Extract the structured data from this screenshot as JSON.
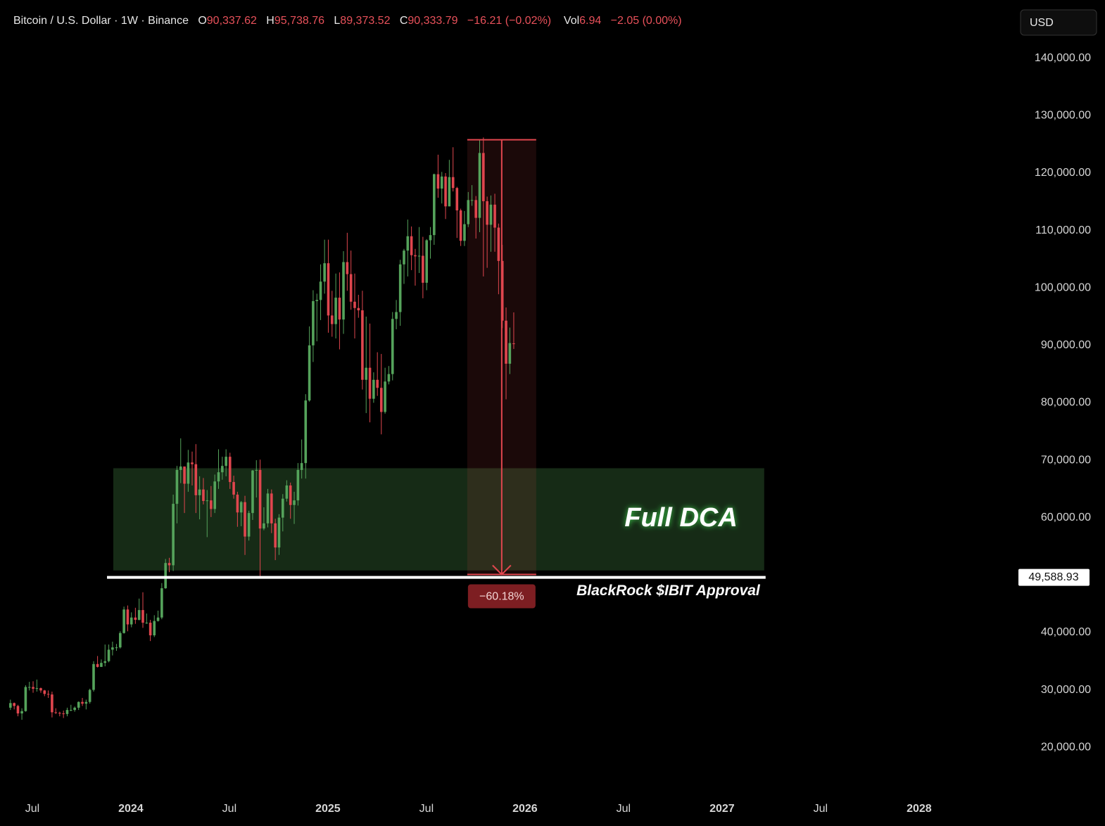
{
  "header": {
    "symbol": "Bitcoin / U.S. Dollar · 1W · Binance",
    "fields": [
      {
        "key": "O",
        "text": "90,337.62"
      },
      {
        "key": "H",
        "text": "95,738.76"
      },
      {
        "key": "L",
        "text": "89,373.52"
      },
      {
        "key": "C",
        "text": "90,333.79"
      }
    ],
    "change": "−16.21 (−0.02%)",
    "vol_key": "Vol",
    "vol": "6.94",
    "vol_change": "−2.05 (0.00%)",
    "currency": "USD"
  },
  "chart_data": {
    "type": "candlestick",
    "up_color": "#55a35b",
    "down_color": "#e0464e",
    "xlim": [
      2023.336,
      2028.479
    ],
    "ylim": [
      12300,
      143400
    ],
    "xticks": [
      {
        "value": 2023.5,
        "label": "Jul"
      },
      2024,
      {
        "value": 2024.5,
        "label": "Jul"
      },
      2025,
      {
        "value": 2025.5,
        "label": "Jul"
      },
      2026,
      {
        "value": 2026.5,
        "label": "Jul"
      },
      2027,
      {
        "value": 2027.5,
        "label": "Jul"
      },
      2028
    ],
    "yticks": [
      {
        "value": 20000,
        "label": "20,000.00"
      },
      {
        "value": 30000,
        "label": "30,000.00"
      },
      {
        "value": 40000,
        "label": "40,000.00"
      },
      {
        "value": 60000,
        "label": "60,000.00"
      },
      {
        "value": 70000,
        "label": "70,000.00"
      },
      {
        "value": 80000,
        "label": "80,000.00"
      },
      {
        "value": 90000,
        "label": "90,000.00"
      },
      {
        "value": 100000,
        "label": "100,000.00"
      },
      {
        "value": 110000,
        "label": "110,000.00"
      },
      {
        "value": 120000,
        "label": "120,000.00"
      },
      {
        "value": 130000,
        "label": "130,000.00"
      },
      {
        "value": 140000,
        "label": "140,000.00"
      }
    ],
    "x": [
      2023.389,
      2023.408,
      2023.427,
      2023.447,
      2023.466,
      2023.485,
      2023.504,
      2023.523,
      2023.543,
      2023.562,
      2023.581,
      2023.6,
      2023.619,
      2023.639,
      2023.658,
      2023.677,
      2023.696,
      2023.715,
      2023.735,
      2023.754,
      2023.773,
      2023.792,
      2023.811,
      2023.831,
      2023.85,
      2023.869,
      2023.888,
      2023.907,
      2023.927,
      2023.946,
      2023.965,
      2023.984,
      2024.003,
      2024.023,
      2024.042,
      2024.061,
      2024.08,
      2024.099,
      2024.119,
      2024.138,
      2024.157,
      2024.176,
      2024.195,
      2024.215,
      2024.234,
      2024.253,
      2024.272,
      2024.291,
      2024.311,
      2024.33,
      2024.349,
      2024.368,
      2024.387,
      2024.407,
      2024.426,
      2024.445,
      2024.464,
      2024.483,
      2024.503,
      2024.522,
      2024.541,
      2024.56,
      2024.579,
      2024.599,
      2024.618,
      2024.637,
      2024.656,
      2024.675,
      2024.695,
      2024.714,
      2024.733,
      2024.752,
      2024.771,
      2024.791,
      2024.81,
      2024.829,
      2024.848,
      2024.867,
      2024.887,
      2024.906,
      2024.925,
      2024.944,
      2024.963,
      2024.983,
      2025.002,
      2025.021,
      2025.04,
      2025.059,
      2025.079,
      2025.098,
      2025.117,
      2025.136,
      2025.155,
      2025.175,
      2025.194,
      2025.213,
      2025.232,
      2025.251,
      2025.271,
      2025.29,
      2025.309,
      2025.328,
      2025.347,
      2025.367,
      2025.386,
      2025.405,
      2025.424,
      2025.443,
      2025.463,
      2025.482,
      2025.501,
      2025.52,
      2025.539,
      2025.559,
      2025.578,
      2025.597,
      2025.616,
      2025.635,
      2025.655,
      2025.674,
      2025.693,
      2025.712,
      2025.731,
      2025.751,
      2025.77,
      2025.789,
      2025.808,
      2025.827,
      2025.847,
      2025.866,
      2025.885,
      2025.904,
      2025.923,
      2025.943
    ],
    "open": [
      26900,
      27700,
      27200,
      25900,
      26300,
      30500,
      30500,
      30200,
      30300,
      29900,
      29300,
      29200,
      26100,
      26000,
      25900,
      25800,
      26500,
      26500,
      26900,
      27900,
      27600,
      27900,
      30000,
      34500,
      34000,
      34700,
      35000,
      37000,
      37400,
      37400,
      39900,
      44000,
      41400,
      42600,
      42200,
      43900,
      41700,
      41700,
      39500,
      42000,
      42600,
      47700,
      52100,
      51700,
      62400,
      68300,
      68900,
      65900,
      69600,
      69300,
      63900,
      64900,
      62900,
      63000,
      61500,
      66300,
      67900,
      69000,
      70600,
      66200,
      64000,
      60900,
      62700,
      56700,
      60800,
      68200,
      68300,
      58100,
      59000,
      64200,
      59000,
      54800,
      60000,
      63300,
      65600,
      62200,
      63000,
      68300,
      69500,
      80400,
      90000,
      97700,
      97900,
      101100,
      104300,
      95200,
      93700,
      98300,
      94500,
      104500,
      102400,
      97600,
      96500,
      96100,
      84000,
      86100,
      80700,
      84000,
      82600,
      78400,
      83700,
      85000,
      94600,
      95800,
      104100,
      106500,
      109000,
      105700,
      105500,
      105600,
      100900,
      108300,
      109200,
      119800,
      117300,
      119400,
      114200,
      119300,
      117400,
      113500,
      108200,
      111100,
      115300,
      115300,
      112200,
      123500,
      115100,
      111000,
      114500,
      110500,
      104700,
      94300,
      86800,
      90337.62
    ],
    "high": [
      28300,
      27800,
      27400,
      26800,
      30800,
      31400,
      31500,
      31800,
      30400,
      30000,
      29900,
      29700,
      26800,
      26200,
      26400,
      26900,
      27400,
      27100,
      28000,
      28600,
      28300,
      30200,
      35000,
      35900,
      35300,
      37900,
      37900,
      38400,
      38000,
      40200,
      44500,
      44700,
      43500,
      44300,
      45900,
      47000,
      43300,
      42200,
      43000,
      43800,
      48600,
      52800,
      53000,
      64000,
      69000,
      73800,
      68900,
      71800,
      71500,
      72800,
      67200,
      66900,
      64800,
      65500,
      67500,
      71900,
      70600,
      71900,
      71300,
      67300,
      64500,
      62900,
      63800,
      61200,
      68300,
      70000,
      70100,
      61800,
      65000,
      64900,
      59800,
      60600,
      64100,
      66500,
      66100,
      64500,
      69500,
      73600,
      81500,
      93300,
      99600,
      99000,
      104100,
      108400,
      108400,
      99500,
      102500,
      102700,
      106400,
      109600,
      106500,
      102500,
      98800,
      99500,
      95000,
      93800,
      85300,
      88800,
      88500,
      86100,
      86400,
      95800,
      97900,
      104900,
      106800,
      111900,
      110700,
      106800,
      110600,
      108900,
      108500,
      110600,
      119900,
      123200,
      120200,
      120000,
      122300,
      124500,
      117600,
      113800,
      113400,
      116700,
      117900,
      116000,
      125700,
      126200,
      115900,
      116100,
      116400,
      111200,
      107500,
      96600,
      93100,
      95738.76
    ],
    "low": [
      26500,
      26600,
      25400,
      24800,
      26200,
      29900,
      29500,
      29700,
      29500,
      28900,
      28600,
      25200,
      25800,
      25400,
      25100,
      25400,
      26300,
      26200,
      26500,
      27200,
      26600,
      27600,
      29700,
      33900,
      34000,
      34100,
      34800,
      36000,
      36800,
      37200,
      39800,
      40200,
      40900,
      41500,
      42100,
      40800,
      41500,
      38500,
      39200,
      41900,
      42300,
      47600,
      50500,
      50700,
      59000,
      66000,
      60800,
      64500,
      65600,
      60800,
      59700,
      62300,
      56600,
      60100,
      60800,
      65000,
      66600,
      67200,
      65000,
      63300,
      58400,
      58500,
      53500,
      56000,
      59600,
      63500,
      49600,
      57800,
      58300,
      57300,
      52600,
      53500,
      57600,
      62800,
      59800,
      58900,
      62100,
      66800,
      66800,
      80200,
      87100,
      90700,
      94400,
      99000,
      92200,
      91500,
      91200,
      89300,
      92000,
      99500,
      96200,
      91200,
      94800,
      82300,
      78200,
      76600,
      80000,
      81200,
      74500,
      78100,
      83200,
      83900,
      92800,
      93400,
      100700,
      102000,
      103100,
      100400,
      102600,
      98200,
      99600,
      105100,
      107500,
      115700,
      114700,
      112000,
      114200,
      116800,
      108700,
      107300,
      107300,
      110600,
      114300,
      108600,
      109700,
      102000,
      103500,
      106300,
      106300,
      98900,
      93000,
      80600,
      85000,
      89373.52
    ],
    "close": [
      27700,
      27200,
      25900,
      26300,
      30500,
      30500,
      30200,
      30300,
      29900,
      29300,
      29200,
      26100,
      26000,
      25900,
      25800,
      26500,
      26500,
      26900,
      27900,
      27600,
      27900,
      30000,
      34500,
      34000,
      34700,
      35000,
      37000,
      37400,
      37400,
      39900,
      44000,
      41400,
      42600,
      42200,
      43900,
      41700,
      41700,
      39500,
      42000,
      42600,
      47700,
      52100,
      51700,
      62400,
      68300,
      68900,
      65900,
      69600,
      69300,
      63900,
      64900,
      62900,
      63000,
      61500,
      66300,
      67900,
      69000,
      70600,
      66200,
      64000,
      60900,
      62700,
      56700,
      60800,
      68200,
      68300,
      58100,
      59000,
      64200,
      59000,
      54800,
      60000,
      63300,
      65600,
      62200,
      63000,
      68300,
      69500,
      80400,
      90000,
      97700,
      97900,
      101100,
      104300,
      95200,
      93700,
      98300,
      94500,
      104500,
      102400,
      97600,
      96500,
      96100,
      84000,
      86100,
      80700,
      84000,
      82600,
      78400,
      83700,
      85000,
      94600,
      95800,
      104100,
      106500,
      109000,
      105700,
      105500,
      105600,
      100900,
      108300,
      109200,
      119800,
      117300,
      119400,
      114200,
      119300,
      117400,
      113500,
      108200,
      111100,
      115300,
      115300,
      112200,
      123500,
      115100,
      111000,
      114500,
      110500,
      104700,
      94300,
      86800,
      90400,
      90333.79
    ],
    "zone": {
      "label": "Full DCA",
      "x": [
        2023.911,
        2027.214
      ],
      "y": [
        50800,
        68600
      ],
      "color": "#1d3a1d"
    },
    "hline": {
      "value": 49588.93,
      "label": "49,588.93",
      "text": "BlackRock $IBIT Approval",
      "x": [
        2023.879,
        2027.221
      ],
      "color": "#ffffff"
    },
    "measure": {
      "from": 125800,
      "to": 50100,
      "x": [
        2025.707,
        2026.057
      ],
      "change": {
        "value": -60.18,
        "label": "−60.18%"
      },
      "color": "#e0464e"
    }
  }
}
